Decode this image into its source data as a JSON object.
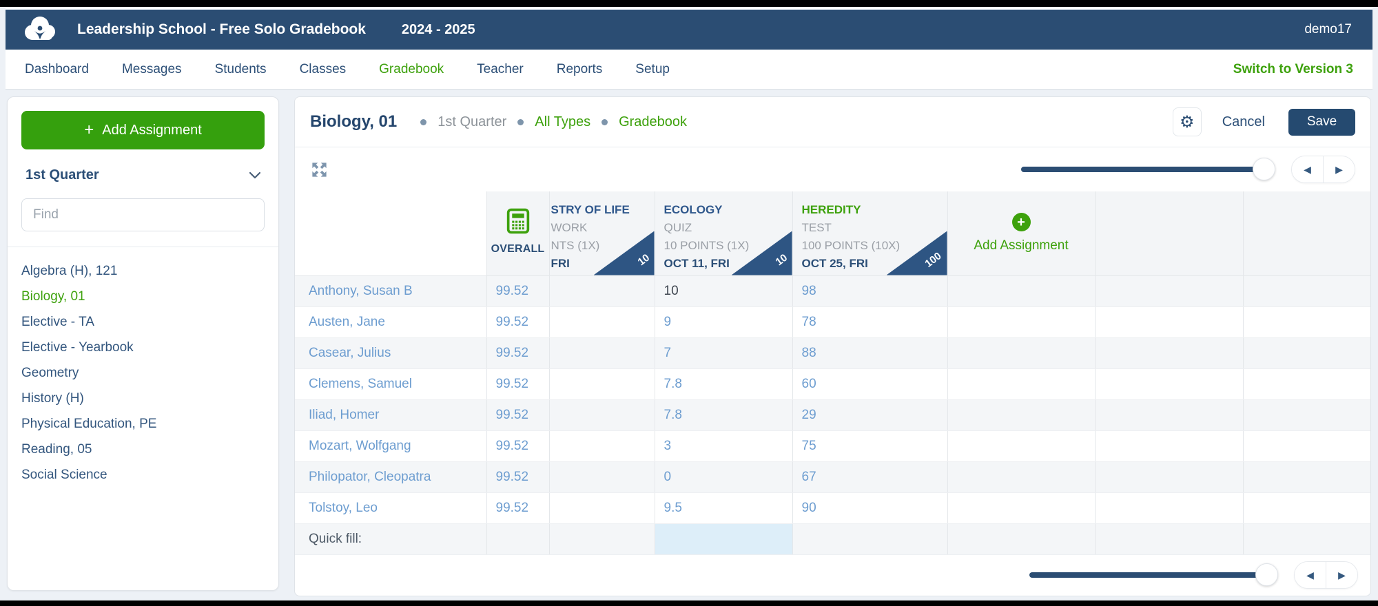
{
  "colors": {
    "brand_navy": "#2b4d73",
    "brand_green": "#3da10c",
    "value_blue": "#6d9dd0",
    "badge_navy": "#2e5583",
    "quickfill_highlight": "#ddeef9"
  },
  "topbar": {
    "school": "Leadership School - Free Solo Gradebook",
    "year": "2024 - 2025",
    "user": "demo17"
  },
  "nav": {
    "items": [
      {
        "label": "Dashboard",
        "active": false
      },
      {
        "label": "Messages",
        "active": false
      },
      {
        "label": "Students",
        "active": false
      },
      {
        "label": "Classes",
        "active": false
      },
      {
        "label": "Gradebook",
        "active": true
      },
      {
        "label": "Teacher",
        "active": false
      },
      {
        "label": "Reports",
        "active": false
      },
      {
        "label": "Setup",
        "active": false
      }
    ],
    "switch_link": "Switch to Version 3"
  },
  "sidebar": {
    "add_assignment_label": "Add Assignment",
    "quarter_selector": "1st Quarter",
    "find_placeholder": "Find",
    "classes": [
      {
        "label": "Algebra (H), 121",
        "active": false
      },
      {
        "label": "Biology, 01",
        "active": true
      },
      {
        "label": "Elective - TA",
        "active": false
      },
      {
        "label": "Elective - Yearbook",
        "active": false
      },
      {
        "label": "Geometry",
        "active": false
      },
      {
        "label": "History (H)",
        "active": false
      },
      {
        "label": "Physical Education, PE",
        "active": false
      },
      {
        "label": "Reading, 05",
        "active": false
      },
      {
        "label": "Social Science",
        "active": false
      }
    ]
  },
  "main": {
    "title": "Biology, 01",
    "breadcrumbs": [
      {
        "label": "1st Quarter",
        "color": "gray"
      },
      {
        "label": "All Types",
        "color": "green"
      },
      {
        "label": "Gradebook",
        "color": "green"
      }
    ],
    "cancel_label": "Cancel",
    "save_label": "Save",
    "grid": {
      "overall_header": "OVERALL",
      "add_assignment_label": "Add Assignment",
      "assignments": [
        {
          "title": "STRY OF LIFE",
          "category": "WORK",
          "points": "NTS (1X)",
          "due": "FRI",
          "max_badge": "10",
          "title_green": false,
          "clipped": true
        },
        {
          "title": "ECOLOGY",
          "category": "QUIZ",
          "points": "10 POINTS (1X)",
          "due": "OCT 11, FRI",
          "max_badge": "10",
          "title_green": false,
          "clipped": false
        },
        {
          "title": "HEREDITY",
          "category": "TEST",
          "points": "100 POINTS (10X)",
          "due": "OCT 25, FRI",
          "max_badge": "100",
          "title_green": true,
          "clipped": false
        }
      ],
      "students": [
        {
          "name": "Anthony, Susan B",
          "overall": "99.52",
          "scores": [
            "",
            "10",
            "98"
          ],
          "focused_score_index": 1
        },
        {
          "name": "Austen, Jane",
          "overall": "99.52",
          "scores": [
            "",
            "9",
            "78"
          ],
          "focused_score_index": -1
        },
        {
          "name": "Casear, Julius",
          "overall": "99.52",
          "scores": [
            "",
            "7",
            "88"
          ],
          "focused_score_index": -1
        },
        {
          "name": "Clemens, Samuel",
          "overall": "99.52",
          "scores": [
            "",
            "7.8",
            "60"
          ],
          "focused_score_index": -1
        },
        {
          "name": "Iliad, Homer",
          "overall": "99.52",
          "scores": [
            "",
            "7.8",
            "29"
          ],
          "focused_score_index": -1
        },
        {
          "name": "Mozart, Wolfgang",
          "overall": "99.52",
          "scores": [
            "",
            "3",
            "75"
          ],
          "focused_score_index": -1
        },
        {
          "name": "Philopator, Cleopatra",
          "overall": "99.52",
          "scores": [
            "",
            "0",
            "67"
          ],
          "focused_score_index": -1
        },
        {
          "name": "Tolstoy, Leo",
          "overall": "99.52",
          "scores": [
            "",
            "9.5",
            "90"
          ],
          "focused_score_index": -1
        }
      ],
      "quick_fill_label": "Quick fill:"
    }
  }
}
